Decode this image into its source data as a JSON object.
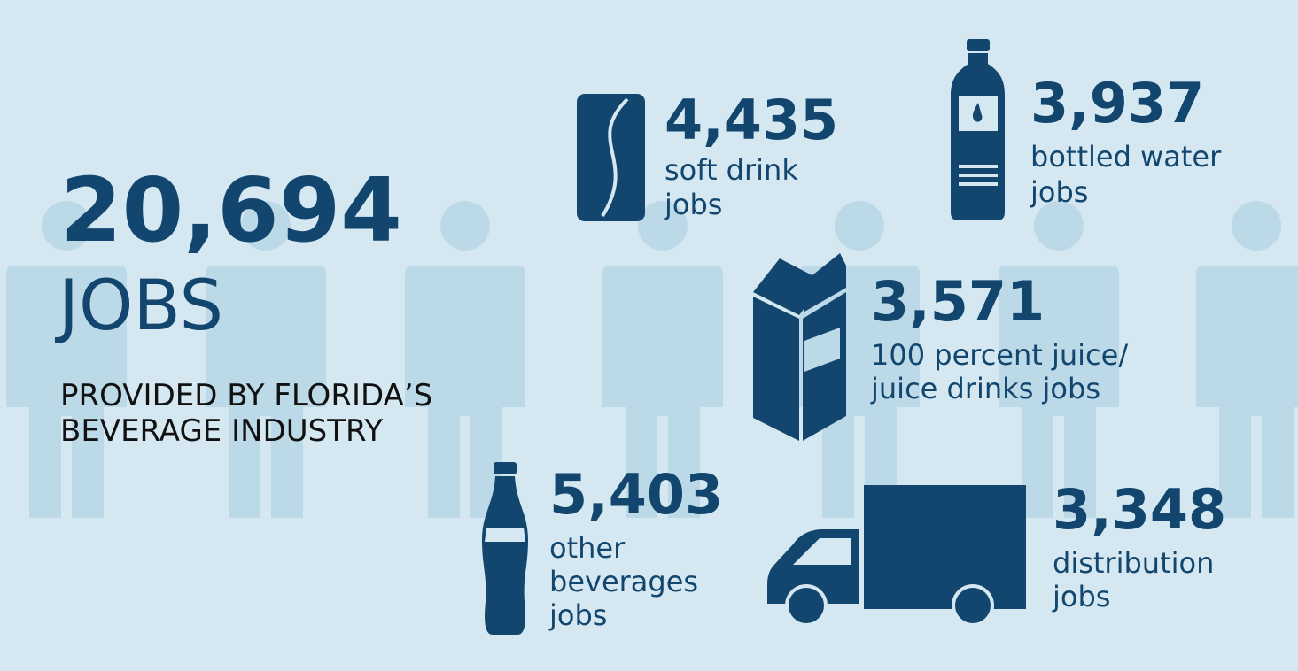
{
  "headline": {
    "number": "20,694",
    "label": "JOBS",
    "subtitle": [
      "PROVIDED BY FLORIDA’S",
      "BEVERAGE INDUSTRY"
    ]
  },
  "items": [
    {
      "number": "4,435",
      "label": [
        "soft drink",
        "jobs"
      ]
    },
    {
      "number": "3,937",
      "label": [
        "bottled water",
        "jobs"
      ]
    },
    {
      "number": "3,571",
      "label": [
        "100 percent juice/",
        "juice drinks jobs"
      ]
    },
    {
      "number": "5,403",
      "label": [
        "other",
        "beverages",
        "jobs"
      ]
    },
    {
      "number": "3,348",
      "label": [
        "distribution",
        "jobs"
      ]
    }
  ]
}
